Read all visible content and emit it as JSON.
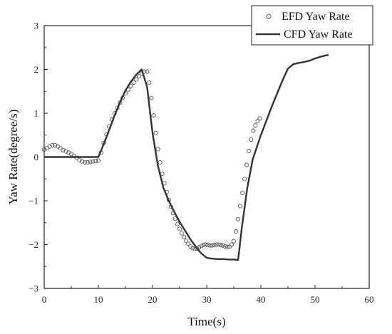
{
  "chart_data": {
    "type": "line",
    "title": "",
    "xlabel": "Time(s)",
    "ylabel": "Yaw Rate(degree/s)",
    "xlim": [
      0,
      60
    ],
    "ylim": [
      -3,
      3
    ],
    "x_ticks": [
      0,
      10,
      20,
      30,
      40,
      50,
      60
    ],
    "y_ticks": [
      -3,
      -2,
      -1,
      0,
      1,
      2,
      3
    ],
    "x_tick_labels": [
      "0",
      "10",
      "20",
      "30",
      "40",
      "50",
      "60"
    ],
    "y_tick_labels": [
      "−3",
      "−2",
      "−1",
      "0",
      "1",
      "2",
      "3"
    ],
    "grid": false,
    "legend_position": "top-right",
    "series": [
      {
        "name": "EFD Yaw Rate",
        "style": "markers",
        "marker": "open-circle",
        "color": "#555555",
        "points": [
          [
            0.0,
            0.17
          ],
          [
            0.5,
            0.2
          ],
          [
            1.0,
            0.24
          ],
          [
            1.5,
            0.27
          ],
          [
            2.0,
            0.27
          ],
          [
            2.5,
            0.24
          ],
          [
            3.0,
            0.2
          ],
          [
            3.5,
            0.16
          ],
          [
            4.0,
            0.13
          ],
          [
            4.5,
            0.1
          ],
          [
            5.0,
            0.07
          ],
          [
            5.5,
            0.03
          ],
          [
            6.0,
            -0.02
          ],
          [
            6.5,
            -0.07
          ],
          [
            7.0,
            -0.1
          ],
          [
            7.5,
            -0.12
          ],
          [
            8.0,
            -0.12
          ],
          [
            8.5,
            -0.11
          ],
          [
            9.0,
            -0.1
          ],
          [
            9.5,
            -0.09
          ],
          [
            10.0,
            -0.08
          ],
          [
            10.5,
            0.1
          ],
          [
            11.0,
            0.32
          ],
          [
            11.5,
            0.52
          ],
          [
            12.0,
            0.7
          ],
          [
            12.5,
            0.86
          ],
          [
            13.0,
            1.0
          ],
          [
            13.5,
            1.12
          ],
          [
            14.0,
            1.24
          ],
          [
            14.5,
            1.35
          ],
          [
            15.0,
            1.45
          ],
          [
            15.5,
            1.54
          ],
          [
            16.0,
            1.62
          ],
          [
            16.5,
            1.7
          ],
          [
            17.0,
            1.77
          ],
          [
            17.5,
            1.84
          ],
          [
            18.0,
            1.9
          ],
          [
            18.5,
            1.95
          ],
          [
            19.0,
            1.95
          ],
          [
            19.4,
            1.7
          ],
          [
            19.8,
            1.35
          ],
          [
            20.2,
            0.95
          ],
          [
            20.6,
            0.55
          ],
          [
            21.0,
            0.18
          ],
          [
            21.4,
            -0.12
          ],
          [
            21.8,
            -0.38
          ],
          [
            22.2,
            -0.6
          ],
          [
            22.6,
            -0.8
          ],
          [
            23.0,
            -0.98
          ],
          [
            23.4,
            -1.14
          ],
          [
            23.8,
            -1.28
          ],
          [
            24.2,
            -1.41
          ],
          [
            24.6,
            -1.53
          ],
          [
            25.0,
            -1.64
          ],
          [
            25.4,
            -1.74
          ],
          [
            25.8,
            -1.83
          ],
          [
            26.2,
            -1.91
          ],
          [
            26.6,
            -1.98
          ],
          [
            27.0,
            -2.04
          ],
          [
            27.4,
            -2.08
          ],
          [
            27.8,
            -2.1
          ],
          [
            28.2,
            -2.09
          ],
          [
            28.6,
            -2.06
          ],
          [
            29.0,
            -2.03
          ],
          [
            29.4,
            -2.01
          ],
          [
            29.8,
            -2.0
          ],
          [
            30.2,
            -2.01
          ],
          [
            30.6,
            -2.02
          ],
          [
            31.0,
            -2.02
          ],
          [
            31.4,
            -2.01
          ],
          [
            31.8,
            -2.0
          ],
          [
            32.2,
            -2.0
          ],
          [
            32.6,
            -2.01
          ],
          [
            33.0,
            -2.02
          ],
          [
            33.4,
            -2.04
          ],
          [
            33.8,
            -2.05
          ],
          [
            34.2,
            -2.05
          ],
          [
            34.6,
            -2.0
          ],
          [
            35.0,
            -1.92
          ],
          [
            35.4,
            -1.7
          ],
          [
            35.8,
            -1.42
          ],
          [
            36.2,
            -1.12
          ],
          [
            36.6,
            -0.82
          ],
          [
            37.0,
            -0.5
          ],
          [
            37.4,
            -0.18
          ],
          [
            37.8,
            0.14
          ],
          [
            38.2,
            0.4
          ],
          [
            38.6,
            0.6
          ],
          [
            39.0,
            0.72
          ],
          [
            39.4,
            0.82
          ],
          [
            39.8,
            0.88
          ]
        ]
      },
      {
        "name": "CFD Yaw Rate",
        "style": "line",
        "color": "#333333",
        "points": [
          [
            0,
            0
          ],
          [
            10,
            0
          ],
          [
            11,
            0.3
          ],
          [
            12,
            0.62
          ],
          [
            13,
            0.95
          ],
          [
            14,
            1.25
          ],
          [
            15,
            1.52
          ],
          [
            16,
            1.72
          ],
          [
            17,
            1.88
          ],
          [
            18,
            2.0
          ],
          [
            19,
            1.6
          ],
          [
            20,
            0.55
          ],
          [
            21,
            -0.2
          ],
          [
            22,
            -0.7
          ],
          [
            23,
            -1.0
          ],
          [
            24,
            -1.25
          ],
          [
            25,
            -1.48
          ],
          [
            26,
            -1.68
          ],
          [
            27,
            -1.88
          ],
          [
            28,
            -2.05
          ],
          [
            29,
            -2.2
          ],
          [
            30,
            -2.3
          ],
          [
            31,
            -2.32
          ],
          [
            32,
            -2.33
          ],
          [
            33,
            -2.33
          ],
          [
            34,
            -2.34
          ],
          [
            35,
            -2.34
          ],
          [
            35.8,
            -2.35
          ],
          [
            36.5,
            -1.6
          ],
          [
            37.5,
            -0.7
          ],
          [
            38.5,
            -0.05
          ],
          [
            40,
            0.5
          ],
          [
            42,
            1.15
          ],
          [
            44,
            1.75
          ],
          [
            45,
            2.02
          ],
          [
            46,
            2.12
          ],
          [
            47,
            2.15
          ],
          [
            48,
            2.17
          ],
          [
            49,
            2.2
          ],
          [
            50,
            2.25
          ],
          [
            51,
            2.29
          ],
          [
            52,
            2.32
          ],
          [
            52.5,
            2.33
          ]
        ]
      }
    ]
  }
}
